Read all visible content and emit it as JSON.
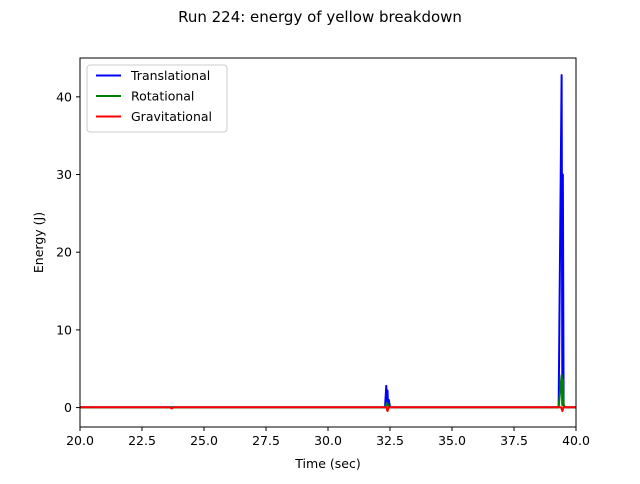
{
  "chart_data": {
    "type": "line",
    "title": "Run 224: energy of yellow breakdown",
    "xlabel": "Time (sec)",
    "ylabel": "Energy (J)",
    "xlim": [
      20.0,
      40.0
    ],
    "ylim": [
      -2.5,
      45.0
    ],
    "x_ticks": [
      20.0,
      22.5,
      25.0,
      27.5,
      30.0,
      32.5,
      35.0,
      37.5,
      40.0
    ],
    "x_tick_labels": [
      "20.0",
      "22.5",
      "25.0",
      "27.5",
      "30.0",
      "32.5",
      "35.0",
      "37.5",
      "40.0"
    ],
    "y_ticks": [
      0,
      10,
      20,
      30,
      40
    ],
    "y_tick_labels": [
      "0",
      "10",
      "20",
      "30",
      "40"
    ],
    "grid": false,
    "legend_position": "top-left",
    "series": [
      {
        "name": "Translational",
        "color": "#0000ff",
        "x": [
          20.0,
          23.7,
          25.3,
          28.7,
          32.3,
          32.35,
          32.38,
          32.4,
          32.42,
          32.45,
          32.5,
          35.0,
          39.3,
          39.42,
          39.45,
          39.47,
          39.5,
          39.55,
          40.0
        ],
        "y": [
          0.05,
          0.05,
          0.05,
          0.05,
          0.05,
          2.8,
          0.3,
          2.2,
          0.2,
          1.0,
          0.05,
          0.05,
          0.05,
          42.8,
          0.5,
          30.0,
          0.3,
          0.05,
          0.05
        ]
      },
      {
        "name": "Rotational",
        "color": "#008000",
        "x": [
          20.0,
          32.3,
          32.38,
          32.42,
          32.5,
          39.3,
          39.42,
          39.45,
          39.47,
          39.5,
          39.55,
          40.0
        ],
        "y": [
          0.02,
          0.02,
          0.6,
          0.3,
          0.02,
          0.02,
          4.2,
          0.3,
          3.6,
          0.4,
          0.02,
          0.02
        ]
      },
      {
        "name": "Gravitational",
        "color": "#ff0000",
        "x": [
          20.0,
          23.6,
          23.7,
          23.8,
          28.7,
          32.35,
          32.4,
          32.45,
          39.4,
          39.45,
          39.5,
          39.55,
          40.0
        ],
        "y": [
          0.05,
          0.05,
          -0.1,
          0.05,
          0.05,
          0.05,
          -0.45,
          0.05,
          0.05,
          -0.45,
          0.1,
          0.05,
          0.05
        ]
      }
    ]
  }
}
